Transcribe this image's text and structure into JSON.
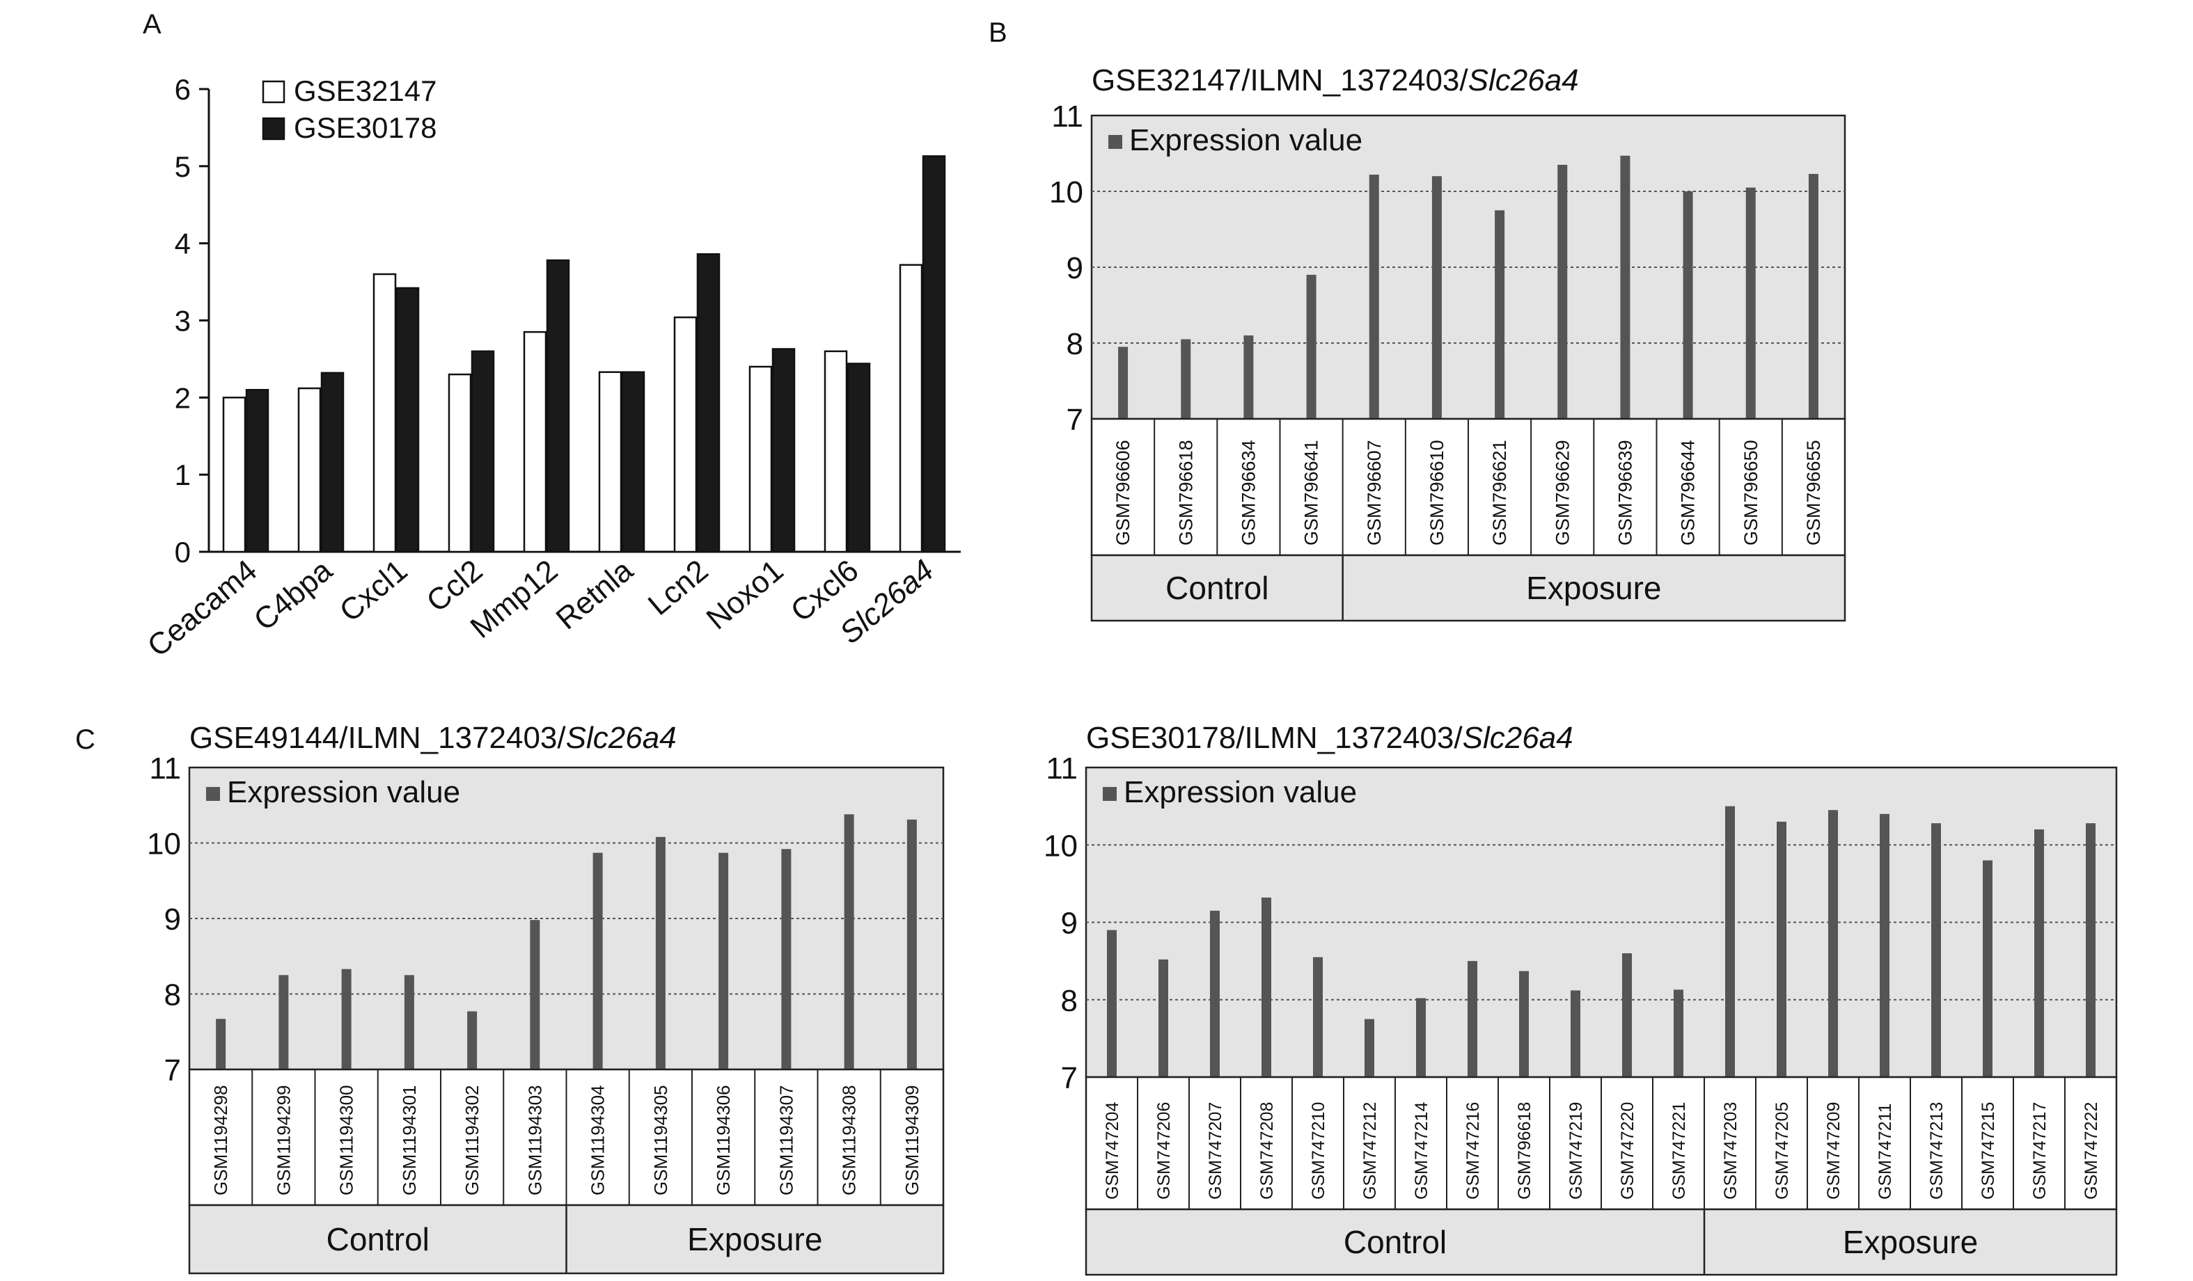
{
  "chart_data": [
    {
      "panel_label": "A",
      "type": "bar",
      "title": "",
      "xlabel": "",
      "ylabel": "",
      "ylim": [
        0,
        6
      ],
      "yticks": [
        "0",
        "1",
        "2",
        "3",
        "4",
        "5",
        "6"
      ],
      "legend_position": "top-left",
      "categories": [
        "Ceacam4",
        "C4bpa",
        "Cxcl1",
        "Ccl2",
        "Mmp12",
        "Retnla",
        "Lcn2",
        "Noxo1",
        "Cxcl6",
        "Slc26a4"
      ],
      "series": [
        {
          "name": "GSE32147",
          "color": "#ffffff",
          "values": [
            2.0,
            2.12,
            3.6,
            2.3,
            2.85,
            2.33,
            3.04,
            2.4,
            2.6,
            3.72
          ]
        },
        {
          "name": "GSE30178",
          "color": "#1a1a1a",
          "values": [
            2.1,
            2.32,
            3.42,
            2.6,
            3.78,
            2.33,
            3.86,
            2.63,
            2.44,
            5.13
          ]
        }
      ]
    },
    {
      "panel_label": "B",
      "type": "bar",
      "title_prefix": "GSE32147/ILMN_1372403/",
      "title_gene": "Slc26a4",
      "legend": "Expression value",
      "legend_position": "top-left",
      "ylim": [
        7,
        11
      ],
      "yticks": [
        "7",
        "8",
        "9",
        "10",
        "11"
      ],
      "categories": [
        "GSM796606",
        "GSM796618",
        "GSM796634",
        "GSM796641",
        "GSM796607",
        "GSM796610",
        "GSM796621",
        "GSM796629",
        "GSM796639",
        "GSM796644",
        "GSM796650",
        "GSM796655"
      ],
      "values": [
        7.95,
        8.05,
        8.1,
        8.9,
        10.22,
        10.2,
        9.75,
        10.35,
        10.47,
        10.0,
        10.05,
        10.23
      ],
      "groups": [
        {
          "label": "Control",
          "count": 4
        },
        {
          "label": "Exposure",
          "count": 8
        }
      ],
      "bar_color": "#555555"
    },
    {
      "panel_label": "C",
      "type": "bar",
      "title_prefix": "GSE49144/ILMN_1372403/",
      "title_gene": "Slc26a4",
      "legend": "Expression value",
      "legend_position": "top-left",
      "ylim": [
        7,
        11
      ],
      "yticks": [
        "7",
        "8",
        "9",
        "10",
        "11"
      ],
      "categories": [
        "GSM1194298",
        "GSM1194299",
        "GSM1194300",
        "GSM1194301",
        "GSM1194302",
        "GSM1194303",
        "GSM1194304",
        "GSM1194305",
        "GSM1194306",
        "GSM1194307",
        "GSM1194308",
        "GSM1194309"
      ],
      "values": [
        7.67,
        8.25,
        8.33,
        8.25,
        7.77,
        8.98,
        9.87,
        10.08,
        9.87,
        9.92,
        10.38,
        10.31
      ],
      "groups": [
        {
          "label": "Control",
          "count": 6
        },
        {
          "label": "Exposure",
          "count": 6
        }
      ],
      "bar_color": "#555555"
    },
    {
      "panel_label": "",
      "type": "bar",
      "title_prefix": "GSE30178/ILMN_1372403/",
      "title_gene": "Slc26a4",
      "legend": "Expression value",
      "legend_position": "top-left",
      "ylim": [
        7,
        11
      ],
      "yticks": [
        "7",
        "8",
        "9",
        "10",
        "11"
      ],
      "categories": [
        "GSM747204",
        "GSM747206",
        "GSM747207",
        "GSM747208",
        "GSM747210",
        "GSM747212",
        "GSM747214",
        "GSM747216",
        "GSM796618",
        "GSM747219",
        "GSM747220",
        "GSM747221",
        "GSM747203",
        "GSM747205",
        "GSM747209",
        "GSM747211",
        "GSM747213",
        "GSM747215",
        "GSM747217",
        "GSM747222"
      ],
      "values": [
        8.9,
        8.52,
        9.15,
        9.32,
        8.55,
        7.75,
        8.02,
        8.5,
        8.37,
        8.12,
        8.6,
        8.13,
        10.5,
        10.3,
        10.45,
        10.4,
        10.28,
        9.8,
        10.2,
        10.28
      ],
      "groups": [
        {
          "label": "Control",
          "count": 12
        },
        {
          "label": "Exposure",
          "count": 8
        }
      ],
      "bar_color": "#555555"
    }
  ]
}
